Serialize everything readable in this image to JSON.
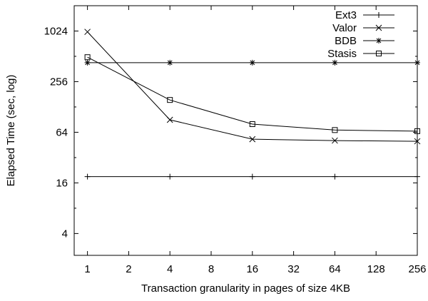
{
  "chart_data": {
    "type": "line",
    "xlabel": "Transaction granularity in pages of size 4KB",
    "ylabel": "Elapsed Time (sec, log)",
    "x_scale": "log2",
    "y_scale": "log",
    "xlim": [
      0.8,
      256
    ],
    "ylim": [
      2.2,
      2048
    ],
    "xticks": [
      1,
      2,
      4,
      8,
      16,
      32,
      64,
      128,
      256
    ],
    "xtick_labels": [
      "1",
      "2",
      "4",
      "8",
      "16",
      "32",
      "64",
      "128",
      "256"
    ],
    "yticks": [
      4,
      16,
      64,
      256,
      1024
    ],
    "ytick_labels": [
      "4",
      "16",
      "64",
      "256",
      "1024"
    ],
    "grid": false,
    "legend_position": "top-right",
    "series": [
      {
        "name": "Ext3",
        "marker": "plus",
        "x": [
          1,
          4,
          16,
          64,
          256
        ],
        "y": [
          19,
          19,
          19,
          19,
          19
        ]
      },
      {
        "name": "Valor",
        "marker": "cross",
        "x": [
          1,
          4,
          16,
          64,
          256
        ],
        "y": [
          1000,
          90,
          53,
          51,
          50
        ]
      },
      {
        "name": "BDB",
        "marker": "star",
        "x": [
          1,
          4,
          16,
          64,
          256
        ],
        "y": [
          430,
          430,
          430,
          430,
          430
        ]
      },
      {
        "name": "Stasis",
        "marker": "square",
        "x": [
          1,
          4,
          16,
          64,
          256
        ],
        "y": [
          500,
          155,
          80,
          68,
          66
        ]
      }
    ]
  }
}
